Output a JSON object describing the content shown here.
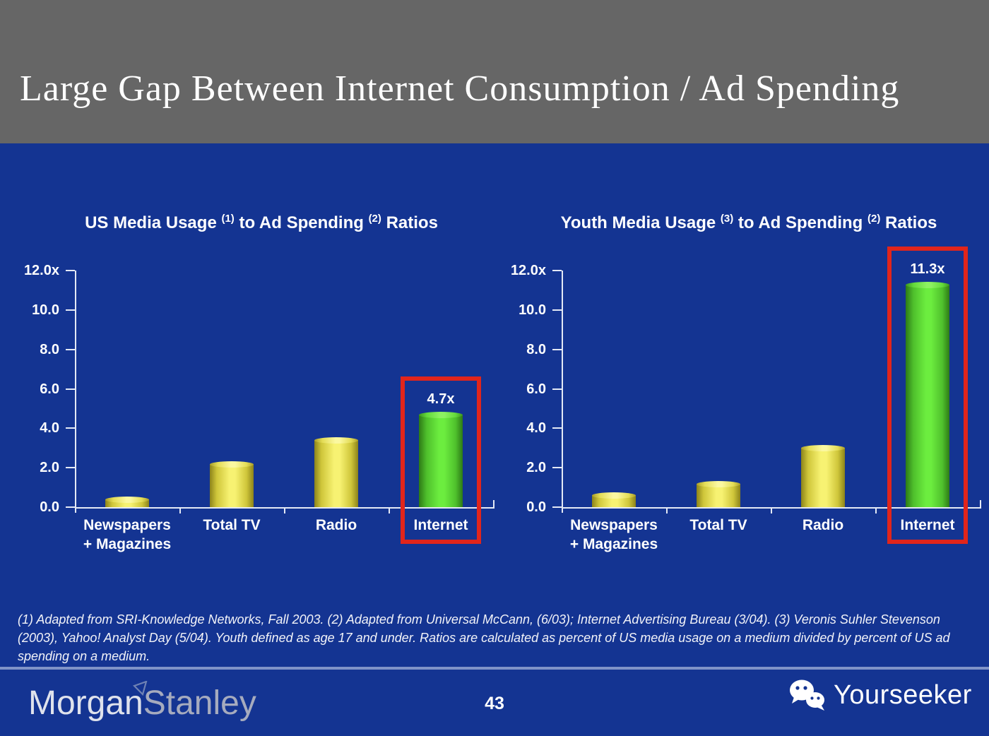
{
  "slide": {
    "title": "Large Gap Between Internet Consumption / Ad Spending",
    "page_number": "43",
    "footnote": "(1) Adapted from SRI-Knowledge Networks, Fall 2003.  (2) Adapted from Universal McCann, (6/03); Internet Advertising Bureau (3/04). (3) Veronis Suhler Stevenson (2003), Yahoo! Analyst Day (5/04).  Youth defined as age 17 and under.  Ratios are calculated as percent of US media usage on a medium divided by percent of US ad spending on a medium.",
    "brand": {
      "morgan": "Morgan",
      "stanley": "Stanley",
      "flag_icon": "morgan-stanley-flag-icon"
    },
    "watermark": {
      "label": "Yourseeker",
      "icon": "wechat-icon"
    }
  },
  "colors": {
    "background_blue": "#143492",
    "header_gray": "#666666",
    "bar_yellow": "#f7f272",
    "bar_green": "#6ced3f",
    "highlight_red": "#e1251b",
    "axis_white": "#e4e9f5",
    "text_white": "#ffffff"
  },
  "chart_data": [
    {
      "type": "bar",
      "title_parts": [
        {
          "text": "US Media Usage "
        },
        {
          "sup": "(1)"
        },
        {
          "text": " to Ad Spending "
        },
        {
          "sup": "(2)"
        },
        {
          "text": " Ratios"
        }
      ],
      "categories": [
        {
          "lines": [
            "Newspapers",
            "+ Magazines"
          ]
        },
        {
          "lines": [
            "Total TV"
          ]
        },
        {
          "lines": [
            "Radio"
          ]
        },
        {
          "lines": [
            "Internet"
          ]
        }
      ],
      "values": [
        0.4,
        2.2,
        3.4,
        4.7
      ],
      "highlight_index": 3,
      "highlight_label": "4.7x",
      "ylim": [
        0,
        12
      ],
      "ytick_labels": [
        "12.0x",
        "10.0",
        "8.0",
        "6.0",
        "4.0",
        "2.0",
        "0.0"
      ],
      "grid": false,
      "legend": "none"
    },
    {
      "type": "bar",
      "title_parts": [
        {
          "text": "Youth Media Usage "
        },
        {
          "sup": "(3)"
        },
        {
          "text": " to Ad Spending "
        },
        {
          "sup": "(2)"
        },
        {
          "text": " Ratios"
        }
      ],
      "categories": [
        {
          "lines": [
            "Newspapers",
            "+ Magazines"
          ]
        },
        {
          "lines": [
            "Total TV"
          ]
        },
        {
          "lines": [
            "Radio"
          ]
        },
        {
          "lines": [
            "Internet"
          ]
        }
      ],
      "values": [
        0.6,
        1.2,
        3.0,
        11.3
      ],
      "highlight_index": 3,
      "highlight_label": "11.3x",
      "ylim": [
        0,
        12
      ],
      "ytick_labels": [
        "12.0x",
        "10.0",
        "8.0",
        "6.0",
        "4.0",
        "2.0",
        "0.0"
      ],
      "grid": false,
      "legend": "none"
    }
  ]
}
